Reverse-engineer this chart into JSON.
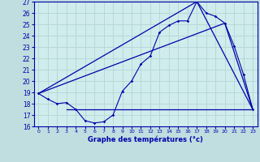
{
  "title": "Graphe des températures (°c)",
  "bg_color": "#c0dde0",
  "plot_bg_color": "#d0ecec",
  "line_color": "#0000aa",
  "grid_color": "#b8d8d8",
  "xlim": [
    -0.5,
    23.5
  ],
  "ylim": [
    16,
    27
  ],
  "xticks": [
    0,
    1,
    2,
    3,
    4,
    5,
    6,
    7,
    8,
    9,
    10,
    11,
    12,
    13,
    14,
    15,
    16,
    17,
    18,
    19,
    20,
    21,
    22,
    23
  ],
  "yticks": [
    16,
    17,
    18,
    19,
    20,
    21,
    22,
    23,
    24,
    25,
    26,
    27
  ],
  "curve1_x": [
    0,
    1,
    2,
    3,
    4,
    5,
    6,
    7,
    8,
    9,
    10,
    11,
    12,
    13,
    14,
    15,
    16,
    17,
    18,
    19,
    20,
    21,
    22,
    23
  ],
  "curve1_y": [
    18.9,
    18.4,
    18.0,
    18.1,
    17.5,
    16.5,
    16.3,
    16.4,
    17.0,
    19.1,
    20.0,
    21.5,
    22.2,
    24.3,
    24.9,
    25.3,
    25.3,
    27.0,
    26.0,
    25.7,
    25.1,
    23.1,
    20.6,
    17.5
  ],
  "curve2_x": [
    3,
    23
  ],
  "curve2_y": [
    17.5,
    17.5
  ],
  "curve3_x": [
    0,
    17,
    23
  ],
  "curve3_y": [
    18.9,
    27.0,
    17.5
  ],
  "curve4_x": [
    0,
    20,
    23
  ],
  "curve4_y": [
    18.9,
    25.1,
    17.5
  ]
}
